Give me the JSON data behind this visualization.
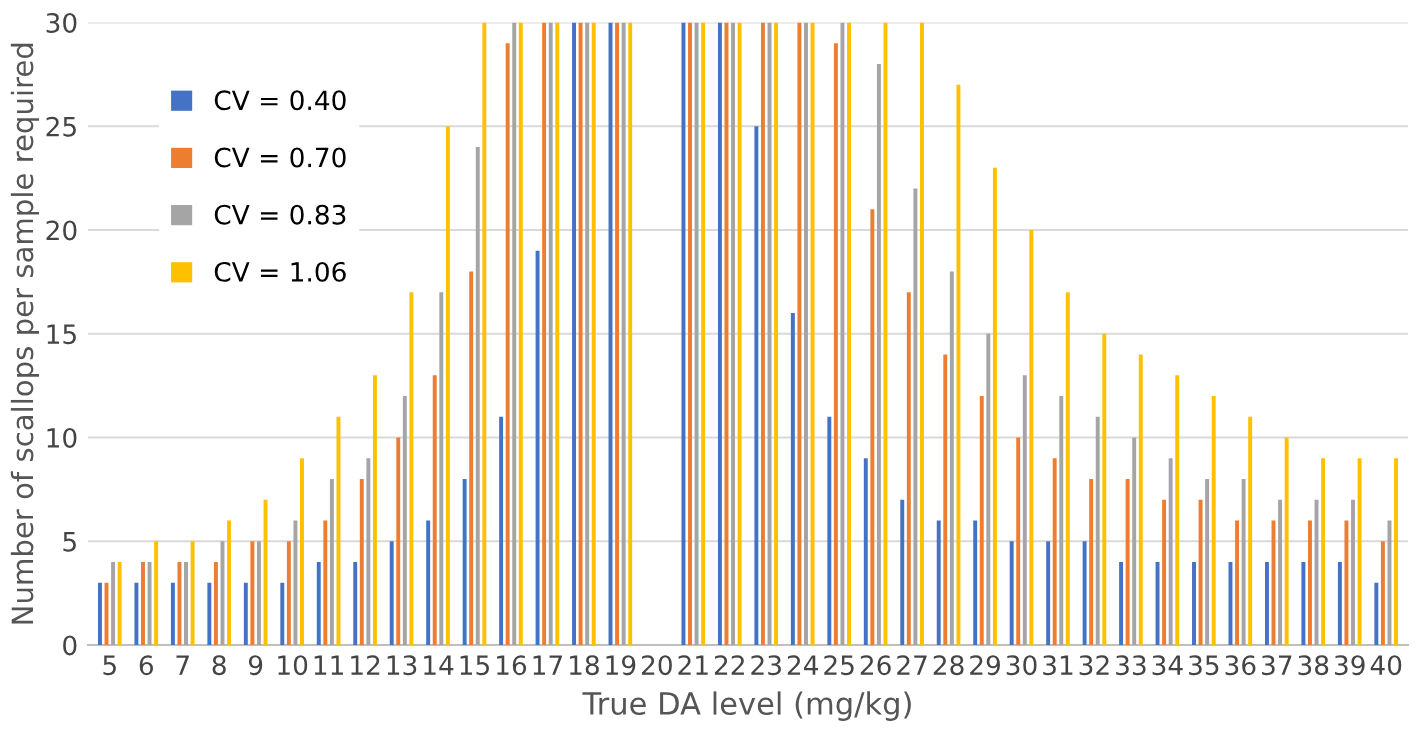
{
  "chart_data": {
    "type": "bar",
    "xlabel": "True DA level (mg/kg)",
    "ylabel": "Number of scallops per sample required",
    "categories": [
      "5",
      "6",
      "7",
      "8",
      "9",
      "10",
      "11",
      "12",
      "13",
      "14",
      "15",
      "16",
      "17",
      "18",
      "19",
      "20",
      "21",
      "22",
      "23",
      "24",
      "25",
      "26",
      "27",
      "28",
      "29",
      "30",
      "31",
      "32",
      "33",
      "34",
      "35",
      "36",
      "37",
      "38",
      "39",
      "40"
    ],
    "series": [
      {
        "name": "CV = 0.40",
        "color": "#4472c4",
        "values": [
          3,
          3,
          3,
          3,
          3,
          3,
          4,
          4,
          5,
          6,
          8,
          11,
          19,
          30,
          30,
          null,
          30,
          30,
          25,
          16,
          11,
          9,
          7,
          6,
          6,
          5,
          5,
          5,
          4,
          4,
          4,
          4,
          4,
          4,
          4,
          3
        ]
      },
      {
        "name": "CV = 0.70",
        "color": "#ed7d31",
        "values": [
          3,
          4,
          4,
          4,
          5,
          5,
          6,
          8,
          10,
          13,
          18,
          29,
          30,
          30,
          30,
          null,
          30,
          30,
          30,
          30,
          29,
          21,
          17,
          14,
          12,
          10,
          9,
          8,
          8,
          7,
          7,
          6,
          6,
          6,
          6,
          5
        ]
      },
      {
        "name": "CV = 0.83",
        "color": "#a5a5a5",
        "values": [
          4,
          4,
          4,
          5,
          5,
          6,
          8,
          9,
          12,
          17,
          24,
          30,
          30,
          30,
          30,
          null,
          30,
          30,
          30,
          30,
          30,
          28,
          22,
          18,
          15,
          13,
          12,
          11,
          10,
          9,
          8,
          8,
          7,
          7,
          7,
          6
        ]
      },
      {
        "name": "CV = 1.06",
        "color": "#ffc000",
        "values": [
          4,
          5,
          5,
          6,
          7,
          9,
          11,
          13,
          17,
          25,
          30,
          30,
          30,
          30,
          30,
          null,
          30,
          30,
          30,
          30,
          30,
          30,
          30,
          27,
          23,
          20,
          17,
          15,
          14,
          13,
          12,
          11,
          10,
          9,
          9,
          9
        ]
      }
    ],
    "ylim": [
      0,
      30
    ],
    "yticks": [
      0,
      5,
      10,
      15,
      20,
      25,
      30
    ],
    "grid": "y",
    "legend": "top left"
  }
}
